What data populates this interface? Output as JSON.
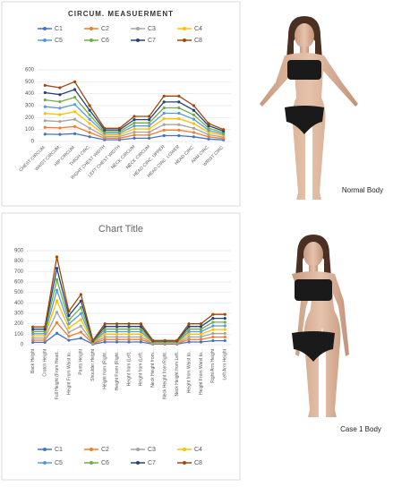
{
  "chart_data": [
    {
      "type": "line",
      "title": "CIRCUM. MEASUERMENT",
      "legend": "top",
      "grid": true,
      "categories": [
        "CHEST CIRCUM.",
        "WAIST CIRCUM.",
        "HIP CIRCUM.",
        "THIGH CIRC.",
        "RIGHT CHEST WIDTH",
        "LEFT CHEST WIDTH",
        "NECK CIRCUM",
        "NECK CIRCUM",
        "HEAD CIRC. UPPER",
        "HEAD CIRC. LOWER",
        "HEAD CIRC.",
        "ARM CIRC.",
        "WRIST CIRC."
      ],
      "ylim": [
        0,
        600
      ],
      "yticks": [
        0,
        100,
        200,
        300,
        400,
        500,
        600
      ],
      "series": [
        {
          "name": "C1",
          "color": "#4472c4",
          "values": [
            61,
            59,
            65,
            39,
            14,
            14,
            27,
            27,
            49,
            49,
            39,
            20,
            13
          ]
        },
        {
          "name": "C2",
          "color": "#ed7d31",
          "values": [
            118,
            113,
            125,
            75,
            28,
            28,
            53,
            53,
            95,
            95,
            75,
            38,
            25
          ]
        },
        {
          "name": "C3",
          "color": "#a5a5a5",
          "values": [
            174,
            167,
            185,
            111,
            41,
            41,
            78,
            78,
            141,
            141,
            111,
            56,
            37
          ]
        },
        {
          "name": "C4",
          "color": "#ffc000",
          "values": [
            235,
            225,
            250,
            150,
            55,
            55,
            105,
            105,
            190,
            190,
            150,
            75,
            50
          ]
        },
        {
          "name": "C5",
          "color": "#5b9bd5",
          "values": [
            291,
            279,
            310,
            186,
            68,
            68,
            130,
            130,
            236,
            236,
            186,
            93,
            62
          ]
        },
        {
          "name": "C6",
          "color": "#70ad47",
          "values": [
            348,
            333,
            370,
            222,
            81,
            81,
            155,
            155,
            281,
            281,
            222,
            111,
            74
          ]
        },
        {
          "name": "C7",
          "color": "#264478",
          "values": [
            409,
            392,
            435,
            261,
            96,
            96,
            183,
            183,
            331,
            331,
            261,
            131,
            87
          ]
        },
        {
          "name": "C8",
          "color": "#9e480e",
          "values": [
            470,
            450,
            500,
            300,
            110,
            110,
            210,
            210,
            380,
            380,
            300,
            150,
            100
          ]
        }
      ]
    },
    {
      "type": "line",
      "title": "Chart Title",
      "legend": "bottom",
      "grid": true,
      "categories": [
        "Back Height",
        "Crotch Height",
        "Full Height (From Head...",
        "Height From Waist to...",
        "Pants Height",
        "Shoulder Height",
        "Height from (Right...",
        "Height From (Right...",
        "Height from (Left...",
        "Height from (Left...",
        "Neck Height from...",
        "Neck Height from Right...",
        "Neck Height from Left...",
        "Height from Waist to...",
        "Height From Waist to...",
        "Right Arm Height",
        "Left Arm Height"
      ],
      "ylim": [
        0,
        900
      ],
      "yticks": [
        0,
        100,
        200,
        300,
        400,
        500,
        600,
        700,
        800,
        900
      ],
      "series": [
        {
          "name": "C1",
          "color": "#4472c4",
          "values": [
            22,
            22,
            109,
            42,
            62,
            5,
            26,
            26,
            26,
            26,
            5,
            5,
            5,
            26,
            26,
            38,
            38
          ]
        },
        {
          "name": "C2",
          "color": "#ed7d31",
          "values": [
            43,
            43,
            210,
            80,
            120,
            10,
            50,
            50,
            50,
            50,
            10,
            10,
            10,
            50,
            50,
            73,
            73
          ]
        },
        {
          "name": "C3",
          "color": "#a5a5a5",
          "values": [
            63,
            63,
            311,
            118,
            178,
            15,
            74,
            74,
            74,
            74,
            15,
            15,
            15,
            74,
            74,
            107,
            107
          ]
        },
        {
          "name": "C4",
          "color": "#ffc000",
          "values": [
            85,
            85,
            420,
            160,
            240,
            20,
            100,
            100,
            100,
            100,
            20,
            20,
            20,
            100,
            100,
            145,
            145
          ]
        },
        {
          "name": "C5",
          "color": "#5b9bd5",
          "values": [
            105,
            105,
            521,
            198,
            298,
            25,
            124,
            124,
            124,
            124,
            25,
            25,
            25,
            124,
            124,
            180,
            180
          ]
        },
        {
          "name": "C6",
          "color": "#70ad47",
          "values": [
            126,
            126,
            622,
            237,
            355,
            30,
            148,
            148,
            148,
            148,
            30,
            30,
            30,
            148,
            148,
            215,
            215
          ]
        },
        {
          "name": "C7",
          "color": "#264478",
          "values": [
            148,
            148,
            731,
            278,
            418,
            35,
            174,
            174,
            174,
            174,
            35,
            35,
            35,
            174,
            174,
            252,
            252
          ]
        },
        {
          "name": "C8",
          "color": "#9e480e",
          "values": [
            170,
            170,
            840,
            320,
            480,
            40,
            200,
            200,
            200,
            200,
            40,
            40,
            40,
            200,
            200,
            290,
            290
          ]
        }
      ]
    }
  ],
  "figure_labels": [
    "Normal Body",
    "Case 1 Body"
  ]
}
